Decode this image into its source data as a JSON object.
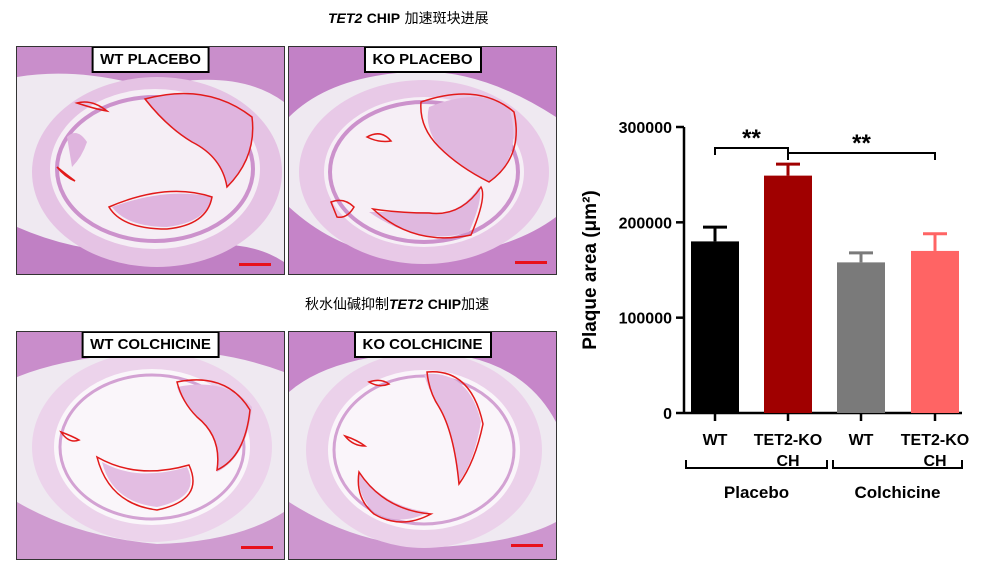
{
  "captions": {
    "top": {
      "italic": "TET2",
      "bold": "CHIP",
      "rest": " 加速斑块进展"
    },
    "middle": {
      "prefix": "秋水仙碱抑制",
      "italic": "TET2",
      "bold": "CHIP",
      "rest": "加速"
    }
  },
  "panels": [
    {
      "label": "WT PLACEBO"
    },
    {
      "label": "KO PLACEBO"
    },
    {
      "label": "WT COLCHICINE"
    },
    {
      "label": "KO COLCHICINE"
    }
  ],
  "colors": {
    "tissue_light": "#e7c8e6",
    "tissue_dark": "#b870b8",
    "background": "#efe9f1",
    "outline": "#e21a1a"
  },
  "chart_data": {
    "type": "bar",
    "ylabel": "Plaque area (μm²)",
    "ylim": [
      0,
      300000
    ],
    "yticks": [
      0,
      100000,
      200000,
      300000
    ],
    "categories": [
      "WT",
      "TET2-KO CH",
      "WT",
      "TET2-KO CH"
    ],
    "category_lines": [
      [
        "WT"
      ],
      [
        "TET2-KO",
        "CH"
      ],
      [
        "WT"
      ],
      [
        "TET2-KO",
        "CH"
      ]
    ],
    "values": [
      180000,
      249000,
      158000,
      170000
    ],
    "errors": [
      15000,
      12000,
      10000,
      18000
    ],
    "colors": [
      "#000000",
      "#a00000",
      "#7a7a7a",
      "#ff6464"
    ],
    "groups": [
      {
        "label": "Placebo",
        "members": [
          0,
          1
        ]
      },
      {
        "label": "Colchicine",
        "members": [
          2,
          3
        ]
      }
    ],
    "significance": [
      {
        "from": 0,
        "to": 1,
        "label": "**"
      },
      {
        "from": 1,
        "to": 3,
        "label": "**"
      }
    ]
  }
}
